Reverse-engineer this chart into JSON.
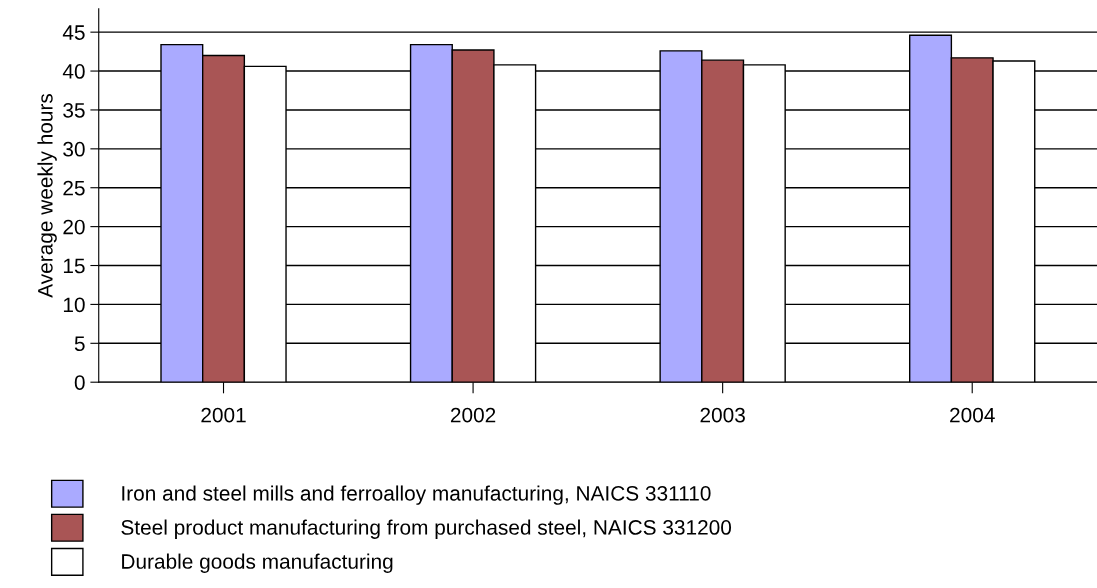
{
  "chart_data": {
    "type": "bar",
    "ylabel": "Average weekly hours",
    "categories": [
      "2001",
      "2002",
      "2003",
      "2004"
    ],
    "series": [
      {
        "name": "Iron and steel mills and ferroalloy manufacturing, NAICS 331110",
        "color": "#aaaaff",
        "values": [
          43.4,
          43.4,
          42.6,
          44.6
        ]
      },
      {
        "name": "Steel product manufacturing from purchased steel, NAICS 331200",
        "color": "#a95555",
        "values": [
          42.0,
          42.7,
          41.4,
          41.7
        ]
      },
      {
        "name": "Durable goods manufacturing",
        "color": "#ffffff",
        "values": [
          40.6,
          40.8,
          40.8,
          41.3
        ]
      }
    ],
    "ylim": [
      0,
      48
    ],
    "yticks": [
      0,
      5,
      10,
      15,
      20,
      25,
      30,
      35,
      40,
      45
    ],
    "grid": "y",
    "legend": "bottom"
  }
}
